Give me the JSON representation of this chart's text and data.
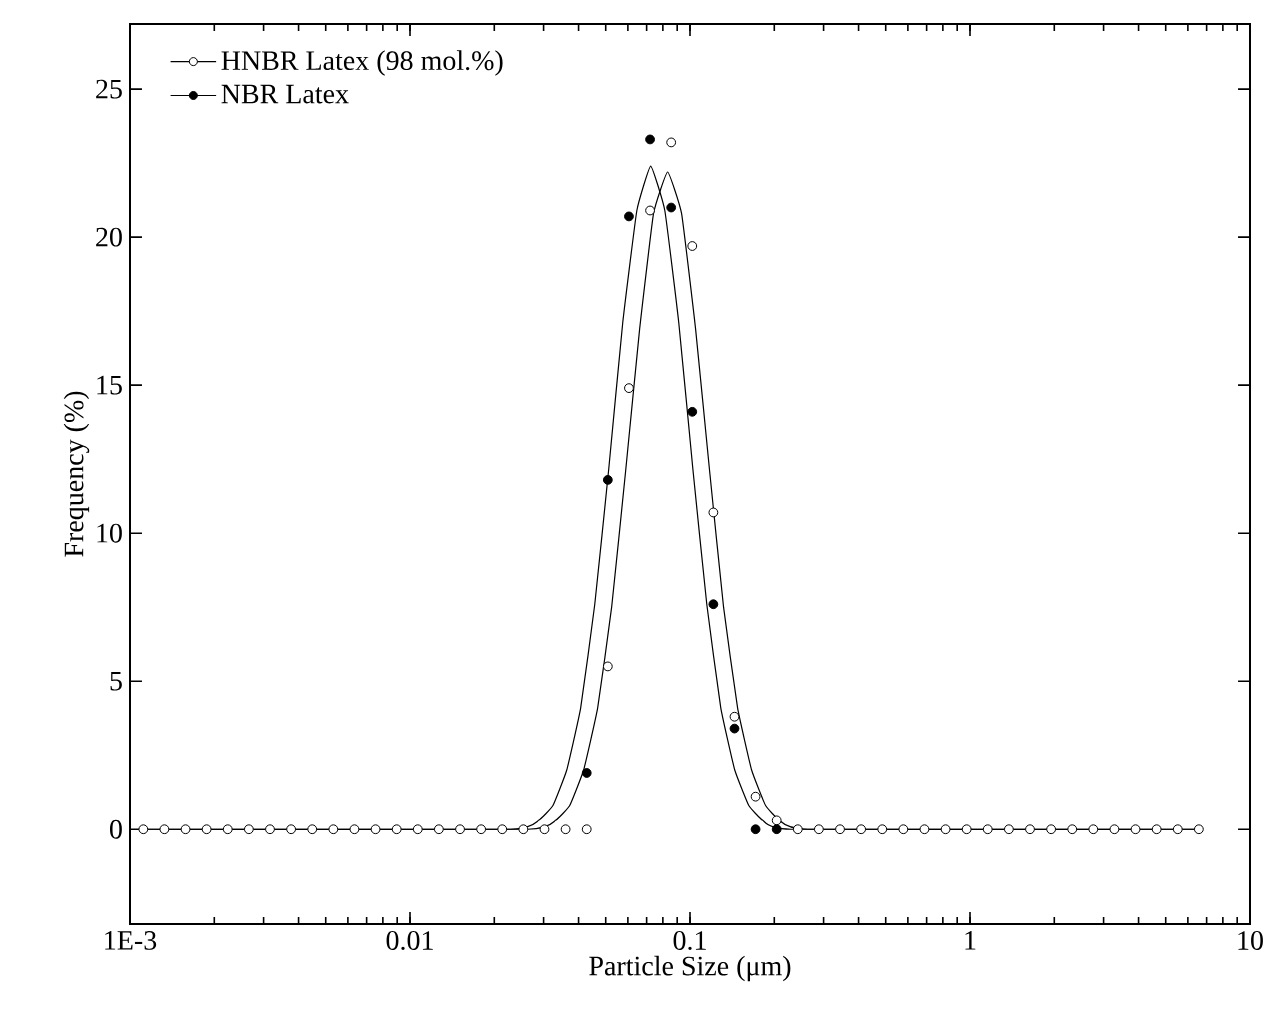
{
  "chart_data": {
    "type": "scatter",
    "xlabel": "Particle Size (μm)",
    "ylabel": "Frequency (%)",
    "log": "x",
    "xlim": [
      0.001,
      10
    ],
    "xticks": [
      {
        "value": 0.001,
        "label": "1E-3"
      },
      0.01,
      0.1,
      1,
      10
    ],
    "ylim": [
      -3.2,
      27.2
    ],
    "yticks": [
      0,
      5,
      10,
      15,
      20,
      25
    ],
    "legend": "top left",
    "series": [
      {
        "name": "HNBR Latex (98 mol.%)",
        "marker": "circle",
        "color": "#ffffff",
        "x": [
          0.001116,
          0.001327,
          0.001579,
          0.001878,
          0.002234,
          0.002658,
          0.003162,
          0.003762,
          0.004475,
          0.005324,
          0.006333,
          0.007534,
          0.008963,
          0.01066,
          0.01268,
          0.01509,
          0.01795,
          0.02135,
          0.0254,
          0.03022,
          0.03595,
          0.04277,
          0.05088,
          0.06053,
          0.07201,
          0.08566,
          0.1019,
          0.1212,
          0.1442,
          0.1715,
          0.204,
          0.2427,
          0.2886,
          0.3434,
          0.4085,
          0.486,
          0.5781,
          0.6877,
          0.8181,
          0.973,
          1.157,
          1.377,
          1.638,
          1.949,
          2.318,
          2.757,
          3.28,
          3.902,
          4.642,
          5.522,
          6.569
        ],
        "values": [
          0,
          0,
          0,
          0,
          0,
          0,
          0,
          0,
          0,
          0,
          0,
          0,
          0,
          0,
          0,
          0,
          0,
          0,
          0,
          0,
          0,
          0,
          5.5,
          14.9,
          20.9,
          23.2,
          19.7,
          10.7,
          3.8,
          1.1,
          0.3,
          0,
          0,
          0,
          0,
          0,
          0,
          0,
          0,
          0,
          0,
          0,
          0,
          0,
          0,
          0,
          0,
          0,
          0,
          0,
          0
        ]
      },
      {
        "name": "NBR Latex",
        "marker": "circle",
        "color": "#000000",
        "x": [
          0.04277,
          0.05088,
          0.06053,
          0.07201,
          0.08566,
          0.1019,
          0.1212,
          0.1442,
          0.1715,
          0.204
        ],
        "values": [
          1.9,
          11.8,
          20.7,
          23.3,
          21.0,
          14.1,
          7.6,
          3.4,
          0,
          0
        ]
      },
      {
        "type": "line",
        "marker": "none",
        "color": "#000000",
        "x": [
          0.001116,
          0.0263,
          0.0331,
          0.0372,
          0.0417,
          0.0468,
          0.0525,
          0.0589,
          0.0661,
          0.0741,
          0.0832,
          0.0933,
          0.1047,
          0.1175,
          0.1318,
          0.1479,
          0.166,
          0.1862,
          0.2089,
          0.263,
          6.569
        ],
        "values": [
          0,
          0,
          0.3,
          0.8,
          2.0,
          4.1,
          7.5,
          12.1,
          16.9,
          20.8,
          22.2,
          20.8,
          16.9,
          12.1,
          7.5,
          4.1,
          2.0,
          0.8,
          0.3,
          0,
          0
        ]
      },
      {
        "type": "line",
        "marker": "none",
        "color": "#000000",
        "x": [
          0.001116,
          0.0229,
          0.0288,
          0.0324,
          0.0363,
          0.0407,
          0.0457,
          0.0513,
          0.0575,
          0.0646,
          0.0724,
          0.0813,
          0.0912,
          0.1023,
          0.1148,
          0.1288,
          0.1445,
          0.1622,
          0.182,
          0.2291,
          6.569
        ],
        "values": [
          0,
          0,
          0.3,
          0.8,
          2.0,
          4.1,
          7.6,
          12.2,
          17.1,
          20.9,
          22.4,
          20.9,
          17.1,
          12.2,
          7.6,
          4.1,
          2.0,
          0.8,
          0.3,
          0,
          0
        ]
      }
    ]
  }
}
